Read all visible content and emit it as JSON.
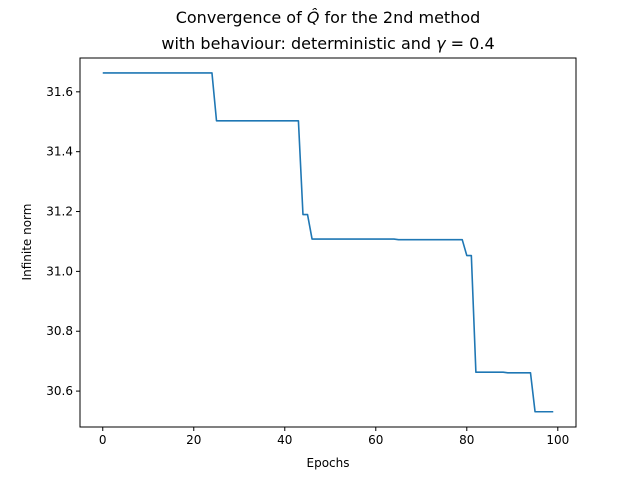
{
  "chart_data": {
    "type": "line",
    "title_line1_prefix": "Convergence of ",
    "title_line1_symbol": "Q̂",
    "title_line1_suffix": " for the 2nd method",
    "title_line2_prefix": "with behaviour: deterministic and ",
    "title_line2_symbol": "γ",
    "title_line2_suffix": " = 0.4",
    "xlabel": "Epochs",
    "ylabel": "Infinite norm",
    "xlim": [
      -5,
      104
    ],
    "ylim": [
      30.48,
      31.713
    ],
    "xticks": [
      0,
      20,
      40,
      60,
      80,
      100
    ],
    "yticks": [
      30.6,
      30.8,
      31.0,
      31.2,
      31.4,
      31.6
    ],
    "ytick_labels": [
      "30.6",
      "30.8",
      "31.0",
      "31.2",
      "31.4",
      "31.6"
    ],
    "grid": false,
    "line_color": "#1f77b4",
    "series": [
      {
        "x": [
          0,
          24,
          25,
          43,
          44,
          45,
          46,
          64,
          65,
          79,
          80,
          81,
          82,
          88,
          89,
          94,
          95,
          99
        ],
        "y": [
          31.663,
          31.663,
          31.503,
          31.503,
          31.19,
          31.19,
          31.108,
          31.108,
          31.106,
          31.106,
          31.053,
          31.053,
          30.663,
          30.663,
          30.661,
          30.661,
          30.531,
          30.531
        ]
      }
    ]
  }
}
